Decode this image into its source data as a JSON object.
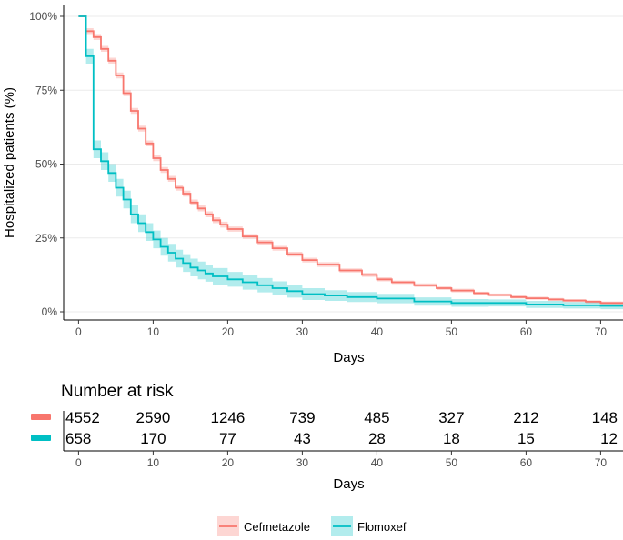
{
  "chart_data": {
    "type": "line",
    "subtype": "kaplan-meier",
    "ylabel": "Hospitalized patients (%)",
    "xlabel": "Days",
    "xlim": [
      -2,
      73
    ],
    "ylim": [
      0,
      100
    ],
    "x_ticks": [
      0,
      10,
      20,
      30,
      40,
      50,
      60,
      70
    ],
    "x_tick_labels": [
      "0",
      "10",
      "20",
      "30",
      "40",
      "50",
      "60",
      "70"
    ],
    "y_ticks": [
      0,
      25,
      50,
      75,
      100
    ],
    "y_tick_labels": [
      "0%",
      "25%",
      "50%",
      "75%",
      "100%"
    ],
    "series": [
      {
        "name": "Cefmetazole",
        "color": "#F8766D",
        "band_color": "#F8766D",
        "x": [
          0,
          1,
          2,
          3,
          4,
          5,
          6,
          7,
          8,
          9,
          10,
          11,
          12,
          13,
          14,
          15,
          16,
          17,
          18,
          19,
          20,
          22,
          24,
          26,
          28,
          30,
          32,
          35,
          38,
          40,
          42,
          45,
          48,
          50,
          53,
          55,
          58,
          60,
          63,
          65,
          68,
          70,
          73
        ],
        "y": [
          100,
          95,
          93,
          89,
          85,
          80,
          74,
          68,
          62,
          57,
          52,
          48,
          45,
          42,
          40,
          37,
          35,
          33,
          31,
          29.5,
          28,
          25.5,
          23.5,
          21.5,
          19.5,
          17.5,
          16,
          14,
          12.5,
          11,
          10,
          9,
          8,
          7.2,
          6.3,
          5.7,
          5,
          4.6,
          4.2,
          3.8,
          3.4,
          3,
          2.8
        ],
        "ci_width": [
          0,
          1,
          1,
          1,
          1,
          1,
          1,
          1,
          1,
          1,
          1,
          1,
          1,
          1,
          1,
          1,
          1,
          1,
          1,
          1,
          0.9,
          0.8,
          0.8,
          0.8,
          0.8,
          0.8,
          0.8,
          0.7,
          0.7,
          0.7,
          0.6,
          0.6,
          0.6,
          0.6,
          0.5,
          0.5,
          0.5,
          0.5,
          0.5,
          0.5,
          0.5,
          0.5,
          0.5
        ]
      },
      {
        "name": "Flomoxef",
        "color": "#00BFC4",
        "band_color": "#00BFC4",
        "x": [
          0,
          1,
          2,
          3,
          4,
          5,
          6,
          7,
          8,
          9,
          10,
          11,
          12,
          13,
          14,
          15,
          16,
          17,
          18,
          20,
          22,
          24,
          26,
          28,
          30,
          33,
          36,
          40,
          45,
          50,
          55,
          60,
          65,
          70,
          73
        ],
        "y": [
          100,
          86.5,
          55,
          51,
          47,
          42,
          38,
          33,
          30,
          27,
          24.5,
          22,
          20,
          18,
          16.5,
          15,
          14,
          13,
          12,
          11,
          10,
          9,
          8,
          7,
          6,
          5.5,
          5,
          4.5,
          3.5,
          3,
          3,
          2.5,
          2.2,
          2,
          2
        ],
        "ci_width": [
          0,
          2.5,
          3,
          3,
          3,
          3,
          3,
          3,
          3,
          3,
          3,
          3,
          3,
          3,
          3,
          3,
          3,
          2.8,
          2.8,
          2.5,
          2.5,
          2.4,
          2.3,
          2.2,
          2,
          1.8,
          1.7,
          1.6,
          1.4,
          1.3,
          1.2,
          1.2,
          1.1,
          1.1,
          1.1
        ]
      }
    ],
    "risk_table": {
      "title": "Number at risk",
      "xlabel": "Days",
      "times": [
        0,
        10,
        20,
        30,
        40,
        50,
        60,
        70
      ],
      "rows": [
        {
          "name": "Cefmetazole",
          "color": "#F8766D",
          "values": [
            "4552",
            "2590",
            "1246",
            "739",
            "485",
            "327",
            "212",
            "148"
          ]
        },
        {
          "name": "Flomoxef",
          "color": "#00BFC4",
          "values": [
            "658",
            "170",
            "77",
            "43",
            "28",
            "18",
            "15",
            "12"
          ]
        }
      ]
    },
    "legend": {
      "position": "bottom",
      "entries": [
        "Cefmetazole",
        "Flomoxef"
      ]
    }
  }
}
